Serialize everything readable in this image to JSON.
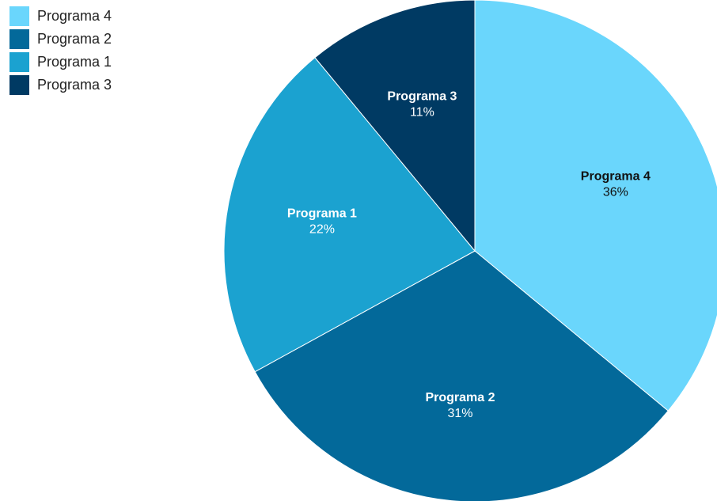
{
  "chart_data": {
    "type": "pie",
    "categories": [
      "Programa 4",
      "Programa 2",
      "Programa 1",
      "Programa 3"
    ],
    "values": [
      36,
      31,
      22,
      11
    ],
    "value_labels": [
      "36%",
      "31%",
      "22%",
      "11%"
    ],
    "colors": [
      "#6ad6fc",
      "#03699a",
      "#1ba2d0",
      "#003a63"
    ],
    "legend": "top-left"
  }
}
